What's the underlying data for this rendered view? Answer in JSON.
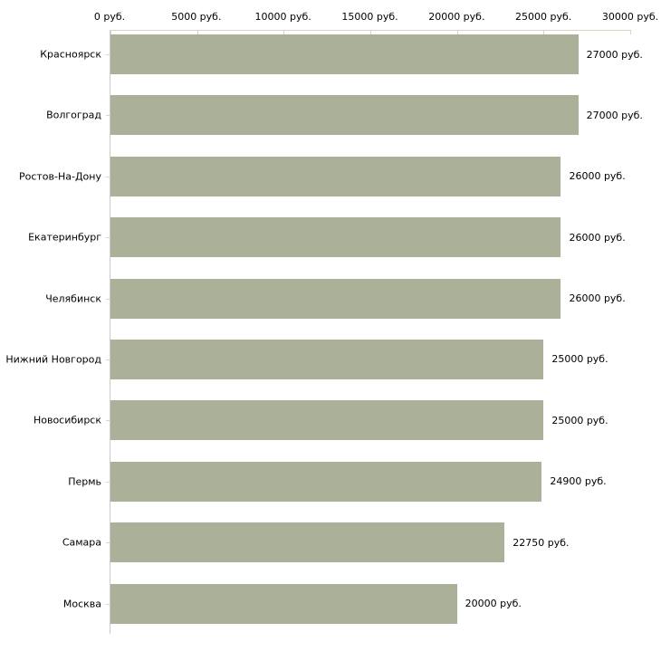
{
  "chart_data": {
    "type": "bar",
    "orientation": "horizontal",
    "title": "",
    "categories": [
      "Красноярск",
      "Волгоград",
      "Ростов-На-Дону",
      "Екатеринбург",
      "Челябинск",
      "Нижний Новгород",
      "Новосибирск",
      "Пермь",
      "Самара",
      "Москва"
    ],
    "values": [
      27000,
      27000,
      26000,
      26000,
      26000,
      25000,
      25000,
      24900,
      22750,
      20000
    ],
    "value_labels": [
      "27000 руб.",
      "27000 руб.",
      "26000 руб.",
      "26000 руб.",
      "26000 руб.",
      "25000 руб.",
      "25000 руб.",
      "24900 руб.",
      "22750 руб.",
      "20000 руб."
    ],
    "x_axis": {
      "position": "top",
      "min": 0,
      "max": 30000,
      "ticks": [
        0,
        5000,
        10000,
        15000,
        20000,
        25000,
        30000
      ],
      "tick_labels": [
        "0 руб.",
        "5000 руб.",
        "10000 руб.",
        "15000 руб.",
        "20000 руб.",
        "25000 руб.",
        "30000 руб."
      ]
    },
    "legend": false,
    "grid": false
  },
  "colors": {
    "bar_fill": "#abb198",
    "axis_line": "#d9d5c3",
    "tick": "#d9d5c3",
    "category_axis_line": "#cccccc",
    "text": "#000000",
    "background": "#ffffff"
  }
}
